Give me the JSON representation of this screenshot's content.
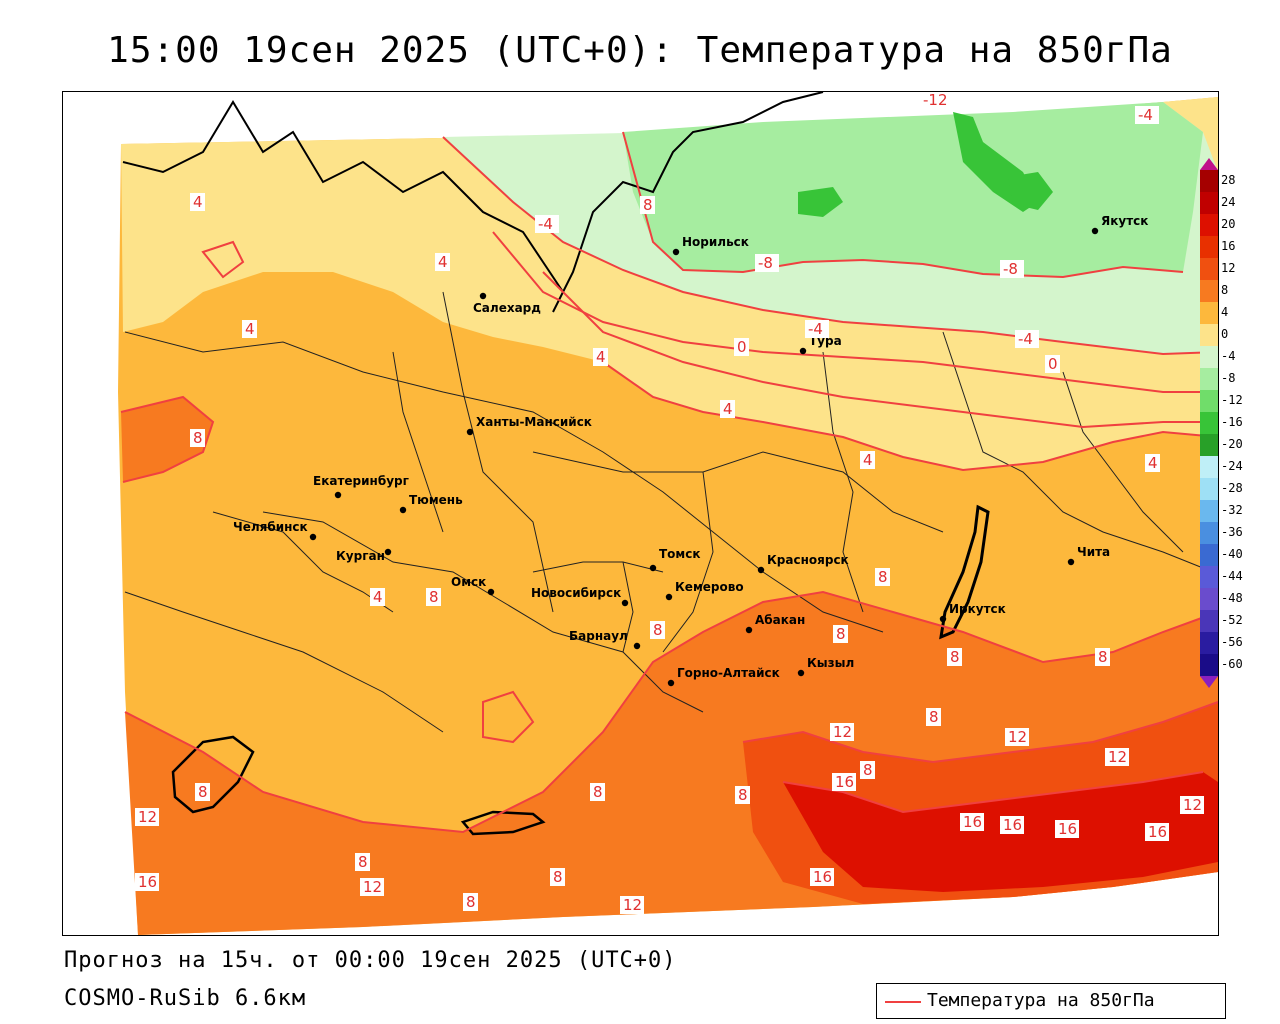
{
  "title": "15:00 19сен 2025 (UTC+0): Температура на 850гПа",
  "forecast_line": "Прогноз на 15ч. от 00:00 19сен 2025 (UTC+0)",
  "model_line": "COSMO-RuSib 6.6км",
  "legend": {
    "label": "Температура на 850гПа",
    "line_color": "#f04040"
  },
  "colorbar": {
    "levels": [
      28,
      24,
      20,
      16,
      12,
      8,
      4,
      0,
      -4,
      -8,
      -12,
      -16,
      -20,
      -24,
      -28,
      -32,
      -36,
      -40,
      -44,
      -48,
      -52,
      -56,
      -60
    ],
    "labels": [
      "28",
      "24",
      "20",
      "16",
      "12",
      "8",
      "4",
      "0",
      "-4",
      "-8",
      "-12",
      "-16",
      "-20",
      "-24",
      "-28",
      "-32",
      "-36",
      "-40",
      "-44",
      "-48",
      "-52",
      "-56",
      "-60"
    ],
    "colors": [
      "#a50000",
      "#c00000",
      "#dd1000",
      "#e83000",
      "#f05010",
      "#f77a20",
      "#fdb83c",
      "#fde38a",
      "#d4f5cc",
      "#a6eda0",
      "#70dd6a",
      "#38c438",
      "#28a028",
      "#bfeff7",
      "#9ee0f5",
      "#6ab8ee",
      "#4a8fe0",
      "#3a6ad2",
      "#5a5ad8",
      "#6a4ccd",
      "#4a36b8",
      "#2a1ca0",
      "#1a0c88"
    ],
    "top_arrow_color": "#c0108a",
    "bottom_arrow_color": "#8a20c0"
  },
  "cities": [
    {
      "name": "Салехард"
    },
    {
      "name": "Норильск"
    },
    {
      "name": "Якутск"
    },
    {
      "name": "Тура"
    },
    {
      "name": "Ханты-Мансийск"
    },
    {
      "name": "Екатеринбург"
    },
    {
      "name": "Тюмень"
    },
    {
      "name": "Челябинск"
    },
    {
      "name": "Курган"
    },
    {
      "name": "Омск"
    },
    {
      "name": "Новосибирск"
    },
    {
      "name": "Томск"
    },
    {
      "name": "Кемерово"
    },
    {
      "name": "Красноярск"
    },
    {
      "name": "Абакан"
    },
    {
      "name": "Барнаул"
    },
    {
      "name": "Горно-Алтайск"
    },
    {
      "name": "Кызыл"
    },
    {
      "name": "Иркутск"
    },
    {
      "name": "Чита"
    }
  ],
  "isotherm_labels": [
    "-12",
    "-4",
    "8",
    "4",
    "-4",
    "-8",
    "-8",
    "4",
    "-4",
    "0",
    "-4",
    "0",
    "4",
    "4",
    "8",
    "4",
    "4",
    "4",
    "8",
    "8",
    "8",
    "8",
    "8",
    "8",
    "8",
    "8",
    "4",
    "8",
    "12",
    "12",
    "12",
    "16",
    "8",
    "8",
    "16",
    "16",
    "16",
    "16",
    "12",
    "12",
    "8",
    "12",
    "16",
    "16",
    "8",
    "8",
    "12"
  ]
}
